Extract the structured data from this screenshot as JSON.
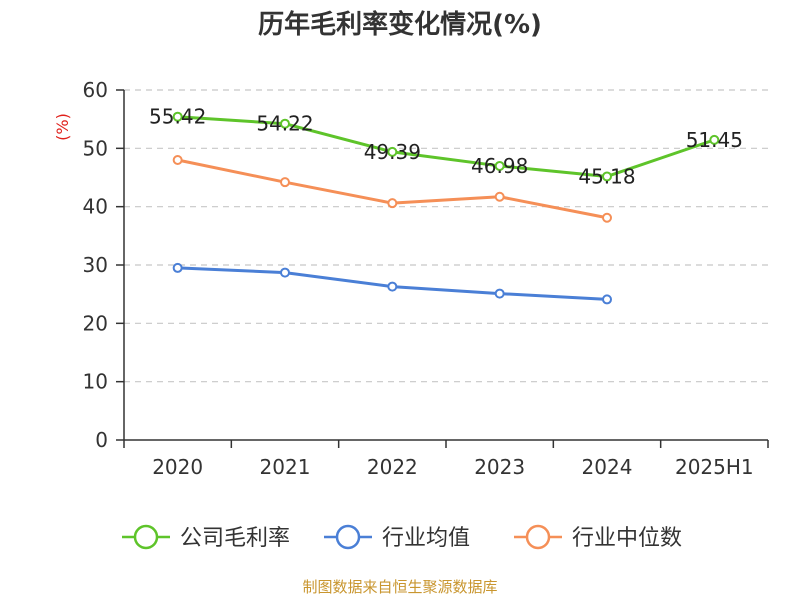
{
  "title": "历年毛利率变化情况(%)",
  "source": "制图数据来自恒生聚源数据库",
  "colors": {
    "company": "#5ec42a",
    "industry_avg": "#4a7fd6",
    "industry_median": "#f58f57",
    "grid": "#c8c8c8",
    "axis": "#333333",
    "unit": "#e0201b",
    "source": "#c9962f"
  },
  "chart_data": {
    "type": "line",
    "title": "历年毛利率变化情况(%)",
    "ylabel": "(%)",
    "xlabel": "",
    "ylim": [
      0,
      60
    ],
    "yticks": [
      0,
      10,
      20,
      30,
      40,
      50,
      60
    ],
    "categories": [
      "2020",
      "2021",
      "2022",
      "2023",
      "2024",
      "2025H1"
    ],
    "grid": true,
    "legend_position": "bottom",
    "series": [
      {
        "name": "公司毛利率",
        "color": "#5ec42a",
        "values": [
          55.42,
          54.22,
          49.39,
          46.98,
          45.18,
          51.45
        ],
        "labels": [
          "55.42",
          "54.22",
          "49.39",
          "46.98",
          "45.18",
          "51.45"
        ]
      },
      {
        "name": "行业均值",
        "color": "#4a7fd6",
        "values": [
          29.5,
          28.7,
          26.3,
          25.1,
          24.1,
          null
        ]
      },
      {
        "name": "行业中位数",
        "color": "#f58f57",
        "values": [
          48.0,
          44.2,
          40.6,
          41.7,
          38.1,
          null
        ]
      }
    ]
  }
}
